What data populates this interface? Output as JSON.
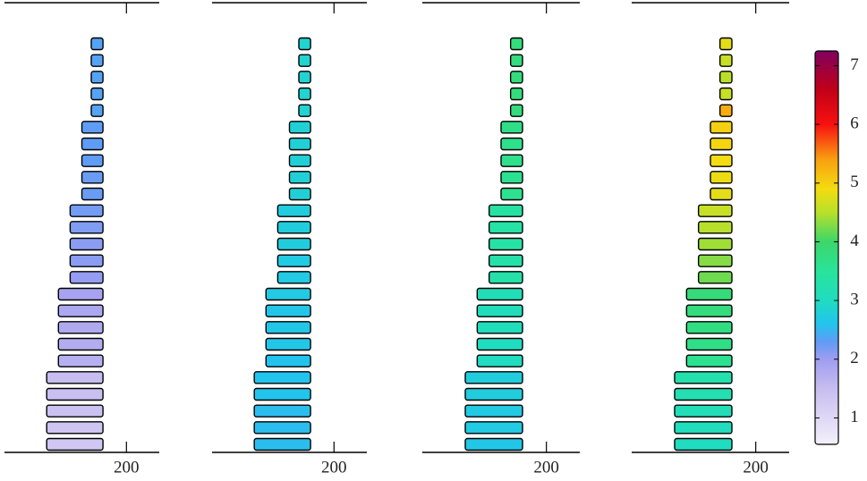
{
  "chart_data": [
    {
      "type": "bar",
      "xlim": [
        -60,
        270
      ],
      "xticks": [
        200
      ],
      "right": 150,
      "left": [
        30,
        30,
        30,
        30,
        30,
        55,
        55,
        55,
        55,
        55,
        80,
        80,
        80,
        80,
        80,
        105,
        105,
        105,
        105,
        105,
        125,
        125,
        125,
        125,
        125
      ],
      "values": [
        1.3,
        1.35,
        1.4,
        1.45,
        1.5,
        1.7,
        1.75,
        1.8,
        1.85,
        1.9,
        2.05,
        2.1,
        2.1,
        2.15,
        2.2,
        2.25,
        2.25,
        2.3,
        2.3,
        2.3,
        2.35,
        2.35,
        2.35,
        2.35,
        2.35
      ]
    },
    {
      "type": "bar",
      "xlim": [
        -60,
        270
      ],
      "xticks": [
        200
      ],
      "right": 150,
      "left": [
        30,
        30,
        30,
        30,
        30,
        55,
        55,
        55,
        55,
        55,
        80,
        80,
        80,
        80,
        80,
        105,
        105,
        105,
        105,
        105,
        125,
        125,
        125,
        125,
        125
      ],
      "values": [
        2.55,
        2.55,
        2.55,
        2.6,
        2.6,
        2.6,
        2.65,
        2.65,
        2.65,
        2.7,
        2.7,
        2.7,
        2.75,
        2.75,
        2.75,
        2.8,
        2.8,
        2.8,
        2.8,
        2.8,
        2.85,
        2.85,
        2.85,
        2.85,
        2.85
      ]
    },
    {
      "type": "bar",
      "xlim": [
        -60,
        270
      ],
      "xticks": [
        200
      ],
      "right": 150,
      "left": [
        30,
        30,
        30,
        30,
        30,
        55,
        55,
        55,
        55,
        55,
        80,
        80,
        80,
        80,
        80,
        105,
        105,
        105,
        105,
        105,
        125,
        125,
        125,
        125,
        125
      ],
      "values": [
        2.65,
        2.7,
        2.7,
        2.75,
        2.75,
        3.0,
        3.0,
        3.05,
        3.05,
        3.1,
        3.3,
        3.3,
        3.35,
        3.35,
        3.4,
        3.6,
        3.6,
        3.65,
        3.65,
        3.7,
        3.8,
        3.8,
        3.8,
        3.8,
        3.8
      ]
    },
    {
      "type": "bar",
      "xlim": [
        -60,
        270
      ],
      "xticks": [
        200
      ],
      "right": 150,
      "left": [
        30,
        30,
        30,
        30,
        30,
        55,
        55,
        55,
        55,
        55,
        80,
        80,
        80,
        80,
        80,
        105,
        105,
        105,
        105,
        105,
        125,
        125,
        125,
        125,
        125
      ],
      "values": [
        3.0,
        3.05,
        3.1,
        3.2,
        3.25,
        3.6,
        3.7,
        3.75,
        3.8,
        3.85,
        4.2,
        4.3,
        4.4,
        4.5,
        4.6,
        4.8,
        4.85,
        4.9,
        4.95,
        5.0,
        5.3,
        4.6,
        4.5,
        4.6,
        4.8
      ]
    },
    {
      "type": "colorbar",
      "lim": [
        0.55,
        7.25
      ],
      "ticks": [
        1,
        2,
        3,
        4,
        5,
        6,
        7
      ],
      "colormap": [
        [
          0.55,
          "#f4f0fb"
        ],
        [
          1.5,
          "#c7bdf0"
        ],
        [
          2.0,
          "#9f9df0"
        ],
        [
          2.3,
          "#5f9cf5"
        ],
        [
          2.6,
          "#22c4ee"
        ],
        [
          3.0,
          "#20dcc0"
        ],
        [
          3.5,
          "#28e49a"
        ],
        [
          4.0,
          "#3cd66a"
        ],
        [
          4.5,
          "#b8e02a"
        ],
        [
          4.9,
          "#f4dc10"
        ],
        [
          5.4,
          "#f8a010"
        ],
        [
          6.0,
          "#f81010"
        ],
        [
          6.6,
          "#c00018"
        ],
        [
          7.25,
          "#800060"
        ]
      ]
    }
  ]
}
